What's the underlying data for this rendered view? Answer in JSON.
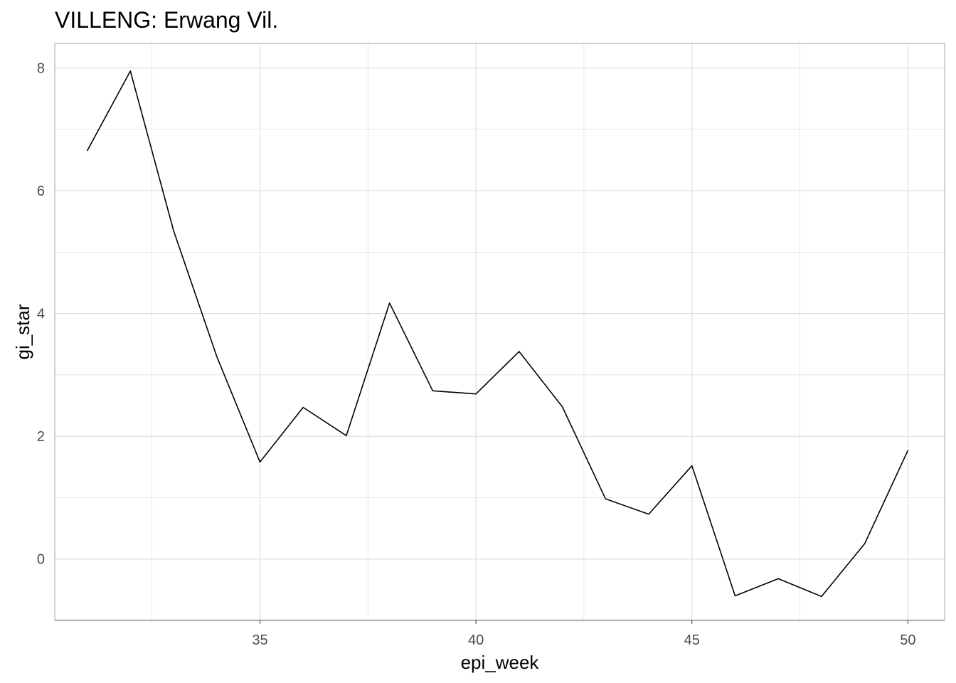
{
  "chart_data": {
    "type": "line",
    "title": "VILLENG: Erwang Vil.",
    "xlabel": "epi_week",
    "ylabel": "gi_star",
    "x": [
      31,
      32,
      33,
      34,
      35,
      36,
      37,
      38,
      39,
      40,
      41,
      42,
      43,
      44,
      45,
      46,
      47,
      48,
      49,
      50
    ],
    "series": [
      {
        "values": [
          6.65,
          7.95,
          5.35,
          3.3,
          1.58,
          2.47,
          2.01,
          4.17,
          2.74,
          2.69,
          3.38,
          2.48,
          0.98,
          0.73,
          1.52,
          -0.6,
          -0.32,
          -0.61,
          0.25,
          1.77
        ],
        "color": "#000000"
      }
    ],
    "xlim": [
      30.25,
      50.85
    ],
    "ylim": [
      -1.0,
      8.4
    ],
    "x_ticks": [
      35,
      40,
      45,
      50
    ],
    "x_tick_labels": [
      "35",
      "40",
      "45",
      "50"
    ],
    "y_ticks": [
      0,
      2,
      4,
      6,
      8
    ],
    "y_tick_labels": [
      "0",
      "2",
      "4",
      "6",
      "8"
    ],
    "grid": true,
    "legend": "none",
    "colors": {
      "grid": "#dedede",
      "panel_border": "#b3b3b3",
      "tick_label": "#4d4d4d",
      "line": "#000000"
    }
  }
}
